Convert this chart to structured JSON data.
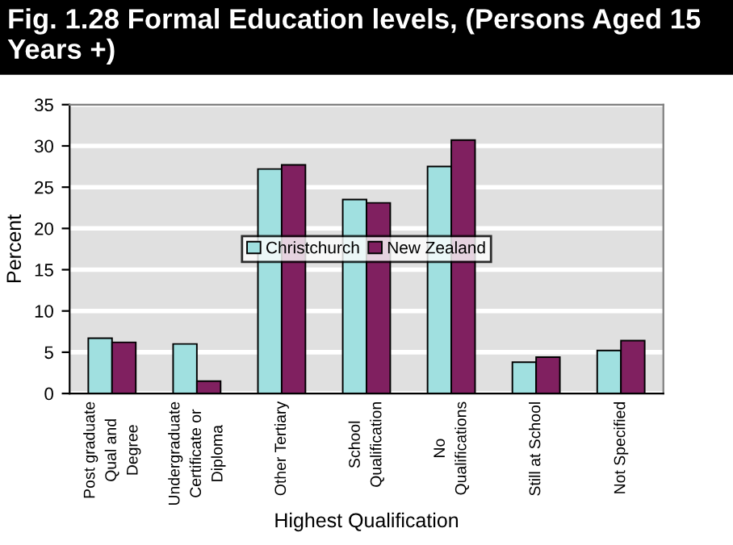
{
  "chart_data": {
    "type": "bar",
    "title": "Fig. 1.28 Formal Education levels, (Persons Aged 15 Years +)",
    "xlabel": "Highest Qualification",
    "ylabel": "Percent",
    "categories": [
      "Post graduate\nQual and\nDegree",
      "Undergraduate\nCertificate or\nDiploma",
      "Other Tertiary",
      "School\nQualification",
      "No\nQualifications",
      "Still at School",
      "Not Specified"
    ],
    "series": [
      {
        "name": "Christchurch",
        "color": "#a0e0e0",
        "values": [
          6.7,
          6.0,
          27.2,
          23.5,
          27.5,
          3.8,
          5.2
        ]
      },
      {
        "name": "New Zealand",
        "color": "#802060",
        "values": [
          6.2,
          1.5,
          27.7,
          23.1,
          30.7,
          4.4,
          6.4
        ]
      }
    ],
    "ylim": [
      0,
      35
    ],
    "yticks": [
      0,
      5,
      10,
      15,
      20,
      25,
      30,
      35
    ],
    "grid": "y",
    "legend": "center"
  }
}
